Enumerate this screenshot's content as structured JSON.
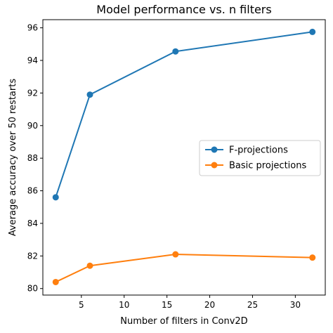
{
  "chart_data": {
    "type": "line",
    "title": "Model performance vs. n filters",
    "xlabel": "Number of filters in Conv2D",
    "ylabel": "Average accuracy over 50 restarts",
    "xlim": [
      0.5,
      33.5
    ],
    "ylim": [
      79.6,
      96.5
    ],
    "xticks": [
      5,
      10,
      15,
      20,
      25,
      30
    ],
    "yticks": [
      80,
      82,
      84,
      86,
      88,
      90,
      92,
      94,
      96
    ],
    "grid": false,
    "legend_position": "center-right",
    "series": [
      {
        "name": "F-projections",
        "color": "#1f77b4",
        "marker": "circle",
        "x": [
          2,
          6,
          16,
          32
        ],
        "y": [
          85.6,
          91.9,
          94.55,
          95.75
        ]
      },
      {
        "name": "Basic projections",
        "color": "#ff7f0e",
        "marker": "circle",
        "x": [
          2,
          6,
          16,
          32
        ],
        "y": [
          80.4,
          81.4,
          82.1,
          81.9
        ]
      }
    ]
  }
}
